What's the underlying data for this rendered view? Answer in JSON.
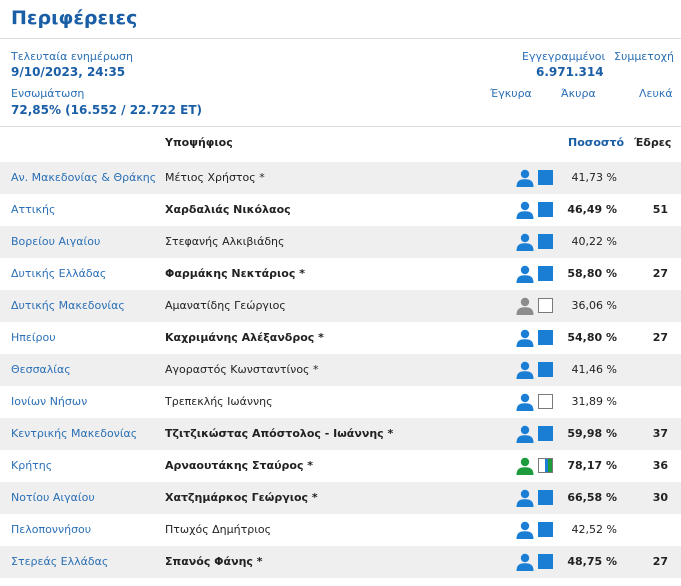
{
  "title": "Περιφέρειες",
  "summary": {
    "last_update_label": "Τελευταία ενημέρωση",
    "last_update_value": "9/10/2023, 24:35",
    "registered_label": "Εγγεγραμμένοι",
    "registered_value": "6.971.314",
    "turnout_label": "Συμμετοχή",
    "integration_label": "Ενσωμάτωση",
    "integration_value": "72,85% (16.552 / 22.722 ΕΤ)",
    "valid_label": "Έγκυρα",
    "invalid_label": "Άκυρα",
    "blank_label": "Λευκά"
  },
  "table": {
    "headers": {
      "candidate": "Υποψήφιος",
      "percent": "Ποσοστό",
      "seats": "Έδρες"
    },
    "rows": [
      {
        "region": "Αν. Μακεδονίας & Θράκης",
        "candidate": "Μέτιος Χρήστος *",
        "percent": "41,73 %",
        "seats": "",
        "winner": false,
        "icon": "person-blue-icon",
        "color": "blue"
      },
      {
        "region": "Αττικής",
        "candidate": "Χαρδαλιάς Νικόλαος",
        "percent": "46,49 %",
        "seats": "51",
        "winner": true,
        "icon": "person-blue-icon",
        "color": "blue"
      },
      {
        "region": "Βορείου Αιγαίου",
        "candidate": "Στεφανής Αλκιβιάδης",
        "percent": "40,22 %",
        "seats": "",
        "winner": false,
        "icon": "person-blue-icon",
        "color": "blue"
      },
      {
        "region": "Δυτικής Ελλάδας",
        "candidate": "Φαρμάκης Νεκτάριος *",
        "percent": "58,80 %",
        "seats": "27",
        "winner": true,
        "icon": "person-blue-icon",
        "color": "blue"
      },
      {
        "region": "Δυτικής Μακεδονίας",
        "candidate": "Αμανατίδης Γεώργιος",
        "percent": "36,06 %",
        "seats": "",
        "winner": false,
        "icon": "person-gray-icon",
        "color": "white"
      },
      {
        "region": "Ηπείρου",
        "candidate": "Καχριμάνης Αλέξανδρος *",
        "percent": "54,80 %",
        "seats": "27",
        "winner": true,
        "icon": "person-blue-icon",
        "color": "blue"
      },
      {
        "region": "Θεσσαλίας",
        "candidate": "Αγοραστός Κωνσταντίνος *",
        "percent": "41,46 %",
        "seats": "",
        "winner": false,
        "icon": "person-blue-icon",
        "color": "blue"
      },
      {
        "region": "Ιονίων Νήσων",
        "candidate": "Τρεπεκλής Ιωάννης",
        "percent": "31,89 %",
        "seats": "",
        "winner": false,
        "icon": "person-blue-icon",
        "color": "white"
      },
      {
        "region": "Κεντρικής Μακεδονίας",
        "candidate": "Τζιτζικώστας Απόστολος - Ιωάννης *",
        "percent": "59,98 %",
        "seats": "37",
        "winner": true,
        "icon": "person-blue-icon",
        "color": "blue"
      },
      {
        "region": "Κρήτης",
        "candidate": "Αρναουτάκης Σταύρος *",
        "percent": "78,17 %",
        "seats": "36",
        "winner": true,
        "icon": "person-green-icon",
        "color": "white-blue-green"
      },
      {
        "region": "Νοτίου Αιγαίου",
        "candidate": "Χατζημάρκος Γεώργιος *",
        "percent": "66,58 %",
        "seats": "30",
        "winner": true,
        "icon": "person-blue-icon",
        "color": "blue"
      },
      {
        "region": "Πελοποννήσου",
        "candidate": "Πτωχός Δημήτριος",
        "percent": "42,52 %",
        "seats": "",
        "winner": false,
        "icon": "person-blue-icon",
        "color": "blue"
      },
      {
        "region": "Στερεάς Ελλάδας",
        "candidate": "Σπανός Φάνης *",
        "percent": "48,75 %",
        "seats": "27",
        "winner": true,
        "icon": "person-blue-icon",
        "color": "blue"
      }
    ]
  },
  "colors": {
    "accent": "#1a5ea6",
    "link": "#2a6fb5",
    "party_blue": "#1a7fd4",
    "person_blue": "#1a7fd4",
    "person_gray": "#8c8c8c",
    "person_green": "#1e9b3c",
    "row_alt": "#efefef"
  }
}
